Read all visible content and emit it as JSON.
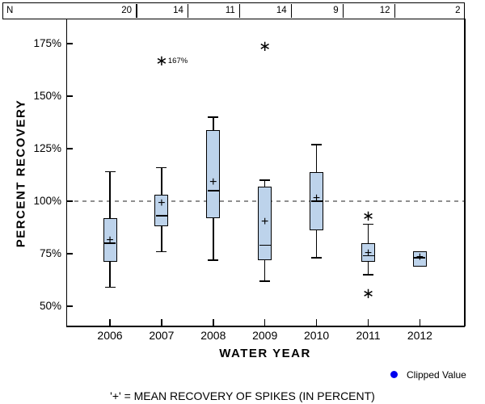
{
  "header_table": {
    "label": "N",
    "values": [
      "20",
      "14",
      "11",
      "14",
      "9",
      "12",
      "2"
    ]
  },
  "chart_data": {
    "type": "boxplot",
    "xlabel": "WATER YEAR",
    "ylabel": "PERCENT RECOVERY",
    "categories": [
      "2006",
      "2007",
      "2008",
      "2009",
      "2010",
      "2011",
      "2012"
    ],
    "n_values": [
      20,
      14,
      11,
      14,
      9,
      12,
      2
    ],
    "y_tick_labels": [
      "175%",
      "150%",
      "125%",
      "100%",
      "75%",
      "50%"
    ],
    "y_tick_values": [
      175,
      150,
      125,
      100,
      75,
      50
    ],
    "ylim": [
      41,
      187
    ],
    "reference_line": 100,
    "grid": "off",
    "series": [
      {
        "year": "2006",
        "n": 20,
        "whisker_low": 59,
        "q1": 71,
        "median": 80,
        "mean": 81,
        "q3": 92,
        "whisker_high": 114,
        "outliers": []
      },
      {
        "year": "2007",
        "n": 14,
        "whisker_low": 76,
        "q1": 88,
        "median": 93,
        "mean": 99,
        "q3": 103,
        "whisker_high": 116,
        "outliers": [
          {
            "value": 167,
            "label": "167%"
          }
        ]
      },
      {
        "year": "2008",
        "n": 11,
        "whisker_low": 72,
        "q1": 92,
        "median": 105,
        "mean": 109,
        "q3": 134,
        "whisker_high": 140,
        "outliers": []
      },
      {
        "year": "2009",
        "n": 14,
        "whisker_low": 62,
        "q1": 72,
        "median": 79,
        "mean": 90,
        "q3": 107,
        "whisker_high": 110,
        "outliers": [
          {
            "value": 174,
            "label": ""
          }
        ]
      },
      {
        "year": "2010",
        "n": 9,
        "whisker_low": 73,
        "q1": 86,
        "median": 100,
        "mean": 101,
        "q3": 114,
        "whisker_high": 127,
        "outliers": []
      },
      {
        "year": "2011",
        "n": 12,
        "whisker_low": 65,
        "q1": 71,
        "median": 74,
        "mean": 75,
        "q3": 80,
        "whisker_high": 89,
        "outliers": [
          {
            "value": 93,
            "label": ""
          },
          {
            "value": 56,
            "label": ""
          }
        ]
      },
      {
        "year": "2012",
        "n": 2,
        "whisker_low": null,
        "q1": 69,
        "median": 73,
        "mean": 73,
        "q3": 76,
        "whisker_high": null,
        "outliers": []
      }
    ]
  },
  "legend": {
    "clipped_label": "Clipped Value"
  },
  "footnote": "'+' = MEAN RECOVERY OF SPIKES (IN PERCENT)",
  "colors": {
    "box_fill": "#BDD3EB",
    "box_border": "#000000",
    "reference_line": "#8f8f8f",
    "clipped_dot": "#0000EE",
    "text": "#000000"
  }
}
